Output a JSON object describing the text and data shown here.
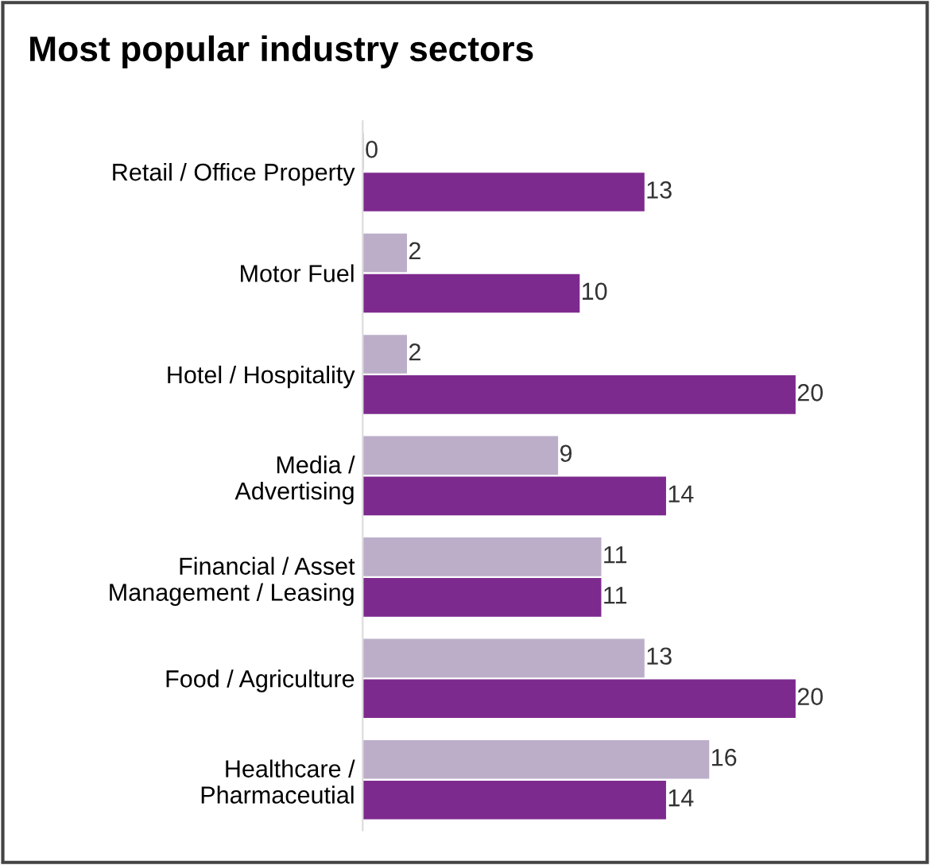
{
  "chart_data": {
    "type": "bar",
    "orientation": "horizontal",
    "title": "Most popular industry sectors",
    "categories": [
      "Retail / Office Property",
      "Motor Fuel",
      "Hotel / Hospitality",
      "Media /\nAdvertising",
      "Financial / Asset\nManagement / Leasing",
      "Food / Agriculture",
      "Healthcare /\nPharmaceutial"
    ],
    "series": [
      {
        "color": "#bcaec9",
        "values": [
          0,
          2,
          2,
          9,
          11,
          13,
          16
        ]
      },
      {
        "color": "#7d2a8e",
        "values": [
          13,
          10,
          20,
          14,
          11,
          20,
          14
        ]
      }
    ],
    "data_labels": true,
    "grid": false
  }
}
